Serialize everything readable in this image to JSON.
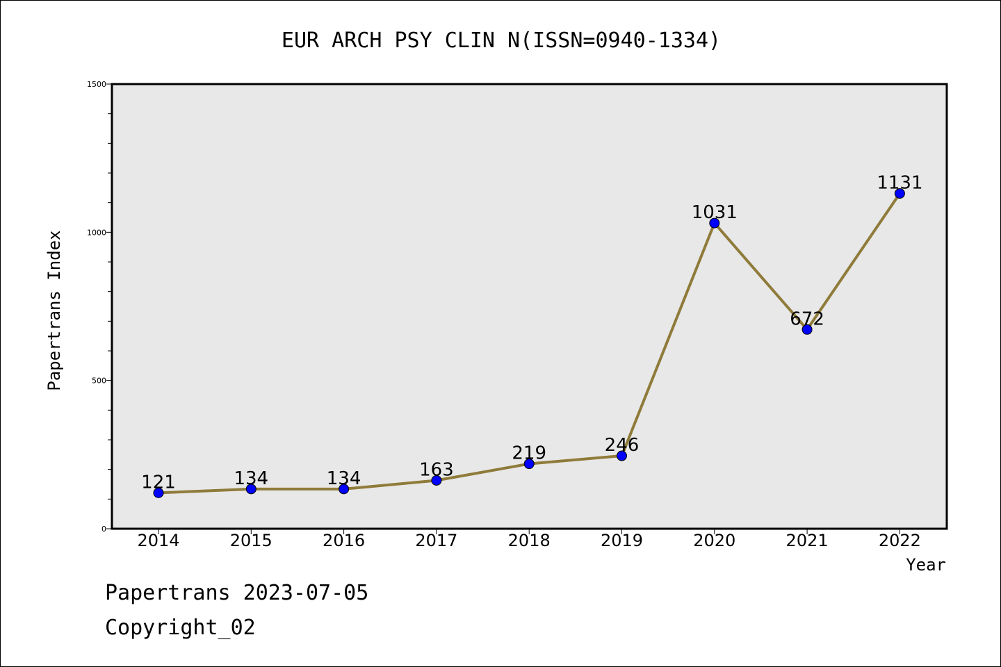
{
  "chart_data": {
    "type": "line",
    "title": "EUR ARCH PSY CLIN N(ISSN=0940-1334)",
    "xlabel": "Year",
    "ylabel": "Papertrans Index",
    "categories": [
      "2014",
      "2015",
      "2016",
      "2017",
      "2018",
      "2019",
      "2020",
      "2021",
      "2022"
    ],
    "values": [
      121,
      134,
      134,
      163,
      219,
      246,
      1031,
      672,
      1131
    ],
    "data_labels": [
      "121",
      "134",
      "134",
      "163",
      "219",
      "246",
      "1031",
      "672",
      "1131"
    ],
    "ylim": [
      0,
      1500
    ],
    "yticks": [
      0,
      500,
      1000,
      1500
    ],
    "ytick_labels": [
      "0",
      "500",
      "1000",
      "1500"
    ],
    "grid": false,
    "legend": "none",
    "colors": {
      "line": "#8f7b3a",
      "marker": "#0000ff",
      "plot_bg": "#e8e8e8"
    }
  },
  "footer": {
    "date_line": "Papertrans 2023-07-05",
    "copyright": "Copyright_02"
  }
}
